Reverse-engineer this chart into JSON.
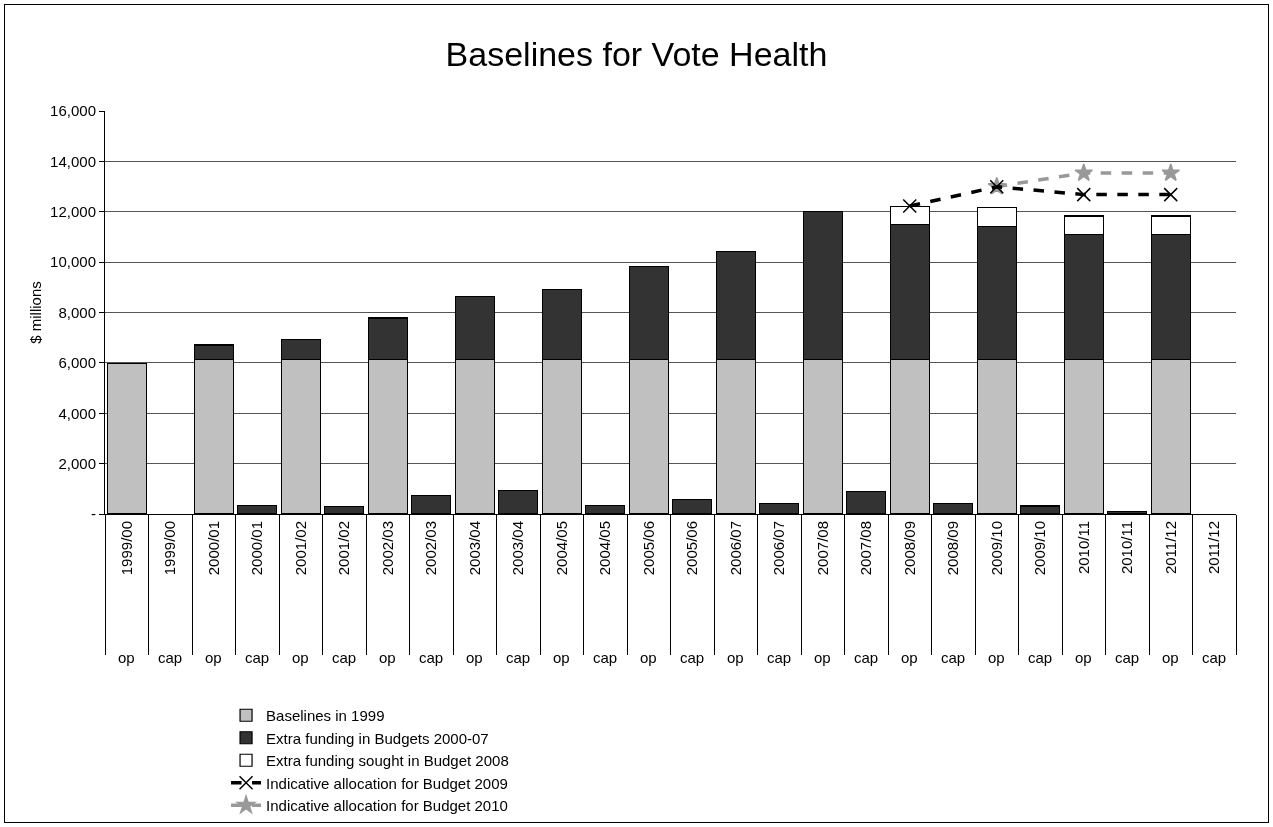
{
  "chart_data": {
    "type": "bar",
    "title": "Baselines for Vote Health",
    "ylabel": "$ millions",
    "categories": [
      "1999/00 op",
      "1999/00 cap",
      "2000/01 op",
      "2000/01 cap",
      "2001/02 op",
      "2001/02 cap",
      "2002/03 op",
      "2002/03 cap",
      "2003/04 op",
      "2003/04 cap",
      "2004/05 op",
      "2004/05 cap",
      "2005/06 op",
      "2005/06 cap",
      "2006/07 op",
      "2006/07 cap",
      "2007/08 op",
      "2007/08 cap",
      "2008/09 op",
      "2008/09 cap",
      "2009/10 op",
      "2009/10 cap",
      "2010/11 op",
      "2010/11 cap",
      "2011/12 op",
      "2011/12 cap"
    ],
    "stacked": true,
    "series": [
      {
        "name": "Baselines in 1999",
        "color": "#c0c0c0",
        "values": [
          5970,
          null,
          6120,
          null,
          6120,
          null,
          6120,
          null,
          6120,
          null,
          6120,
          null,
          6120,
          null,
          6120,
          null,
          6120,
          null,
          6120,
          null,
          6120,
          null,
          6120,
          null,
          6120,
          null
        ]
      },
      {
        "name": "Extra funding in Budgets 2000-07",
        "color": "#333333",
        "values": [
          null,
          null,
          590,
          350,
          800,
          300,
          1660,
          740,
          2500,
          930,
          2780,
          350,
          3720,
          580,
          4310,
          420,
          5880,
          890,
          5360,
          420,
          5290,
          320,
          4980,
          100,
          4980,
          null
        ]
      },
      {
        "name": "Extra funding sought in Budget 2008",
        "color": "#ffffff",
        "values": [
          null,
          null,
          null,
          null,
          null,
          null,
          null,
          null,
          null,
          null,
          null,
          null,
          null,
          null,
          null,
          null,
          null,
          null,
          730,
          null,
          750,
          null,
          730,
          null,
          730,
          null
        ]
      },
      {
        "name": "Indicative allocation for Budget 2009",
        "type": "line",
        "color": "#000000",
        "line_style": "dashed",
        "marker": "cross",
        "x": [
          "2008/09 op",
          "2009/10 op",
          "2010/11 op",
          "2011/12 op"
        ],
        "values": [
          12230,
          12990,
          12680,
          12680
        ]
      },
      {
        "name": "Indicative allocation for Budget 2010",
        "type": "line",
        "color": "#999999",
        "line_style": "dashed",
        "marker": "star",
        "x": [
          "2009/10 op",
          "2010/11 op",
          "2011/12 op"
        ],
        "values": [
          13000,
          13540,
          13540
        ]
      }
    ],
    "ylim": [
      0,
      16000
    ],
    "yticks": [
      {
        "value": 0,
        "label": "-"
      },
      {
        "value": 2000,
        "label": "2,000"
      },
      {
        "value": 4000,
        "label": "4,000"
      },
      {
        "value": 6000,
        "label": "6,000"
      },
      {
        "value": 8000,
        "label": "8,000"
      },
      {
        "value": 10000,
        "label": "10,000"
      },
      {
        "value": 12000,
        "label": "12,000"
      },
      {
        "value": 14000,
        "label": "14,000"
      },
      {
        "value": 16000,
        "label": "16,000"
      }
    ],
    "grid": "y",
    "legend": "bottom"
  }
}
